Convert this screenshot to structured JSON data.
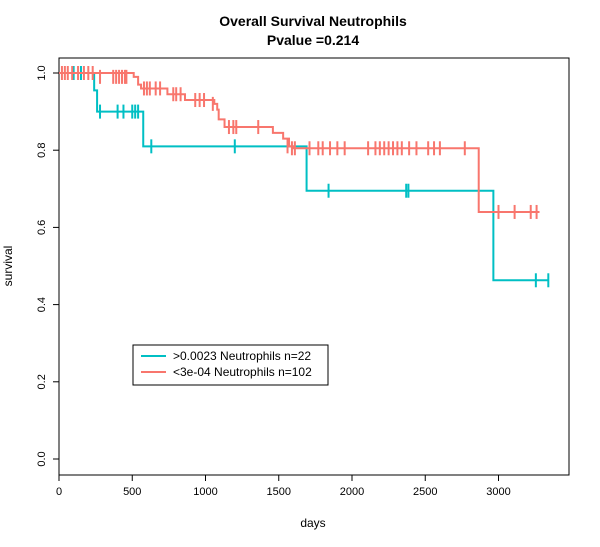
{
  "chart_data": {
    "type": "line",
    "subtype": "kaplan-meier",
    "title": "Overall Survival Neutrophils",
    "subtitle": "Pvalue =0.214",
    "xlabel": "days",
    "ylabel": "survival",
    "xlim": [
      0,
      3350
    ],
    "ylim": [
      0,
      1.0
    ],
    "x_ticks": [
      0,
      500,
      1000,
      1500,
      2000,
      2500,
      3000
    ],
    "y_ticks": [
      0.0,
      0.2,
      0.4,
      0.6,
      0.8,
      1.0
    ],
    "y_tick_labels": [
      "0.0",
      "0.2",
      "0.4",
      "0.6",
      "0.8",
      "1.0"
    ],
    "grid": false,
    "legend_position": "bottom-left",
    "series": [
      {
        "name": ">0.0023 Neutrophils n=22",
        "color": "#00BFC4",
        "steps": [
          [
            0,
            1.0
          ],
          [
            240,
            0.955
          ],
          [
            260,
            0.9
          ],
          [
            575,
            0.81
          ],
          [
            1690,
            0.695
          ],
          [
            2965,
            0.463
          ],
          [
            3340,
            0.463
          ]
        ],
        "censors": [
          [
            100,
            1.0
          ],
          [
            150,
            1.0
          ],
          [
            280,
            0.9
          ],
          [
            400,
            0.9
          ],
          [
            440,
            0.9
          ],
          [
            500,
            0.9
          ],
          [
            520,
            0.9
          ],
          [
            540,
            0.9
          ],
          [
            630,
            0.81
          ],
          [
            1200,
            0.81
          ],
          [
            1840,
            0.695
          ],
          [
            2370,
            0.695
          ],
          [
            2385,
            0.695
          ],
          [
            3255,
            0.463
          ],
          [
            3340,
            0.463
          ]
        ]
      },
      {
        "name": "<3e-04 Neutrophils n=102",
        "color": "#F8766D",
        "steps": [
          [
            0,
            1.0
          ],
          [
            510,
            0.99
          ],
          [
            540,
            0.97
          ],
          [
            560,
            0.96
          ],
          [
            650,
            0.96
          ],
          [
            740,
            0.945
          ],
          [
            860,
            0.93
          ],
          [
            930,
            0.93
          ],
          [
            1060,
            0.92
          ],
          [
            1080,
            0.905
          ],
          [
            1090,
            0.88
          ],
          [
            1130,
            0.86
          ],
          [
            1280,
            0.86
          ],
          [
            1420,
            0.86
          ],
          [
            1460,
            0.845
          ],
          [
            1530,
            0.83
          ],
          [
            1570,
            0.81
          ],
          [
            1600,
            0.805
          ],
          [
            2860,
            0.805
          ],
          [
            2865,
            0.64
          ],
          [
            3280,
            0.64
          ]
        ],
        "censors": [
          [
            20,
            1.0
          ],
          [
            40,
            1.0
          ],
          [
            60,
            1.0
          ],
          [
            90,
            1.0
          ],
          [
            130,
            1.0
          ],
          [
            170,
            1.0
          ],
          [
            200,
            1.0
          ],
          [
            230,
            1.0
          ],
          [
            280,
            0.99
          ],
          [
            370,
            0.99
          ],
          [
            390,
            0.99
          ],
          [
            410,
            0.99
          ],
          [
            430,
            0.99
          ],
          [
            450,
            0.99
          ],
          [
            460,
            0.99
          ],
          [
            580,
            0.96
          ],
          [
            600,
            0.96
          ],
          [
            620,
            0.96
          ],
          [
            660,
            0.96
          ],
          [
            690,
            0.96
          ],
          [
            780,
            0.945
          ],
          [
            800,
            0.945
          ],
          [
            830,
            0.945
          ],
          [
            930,
            0.93
          ],
          [
            960,
            0.93
          ],
          [
            990,
            0.93
          ],
          [
            1050,
            0.92
          ],
          [
            1160,
            0.86
          ],
          [
            1190,
            0.86
          ],
          [
            1210,
            0.86
          ],
          [
            1360,
            0.86
          ],
          [
            1560,
            0.81
          ],
          [
            1590,
            0.805
          ],
          [
            1610,
            0.805
          ],
          [
            1710,
            0.805
          ],
          [
            1770,
            0.805
          ],
          [
            1800,
            0.805
          ],
          [
            1850,
            0.805
          ],
          [
            1900,
            0.805
          ],
          [
            1950,
            0.805
          ],
          [
            2110,
            0.805
          ],
          [
            2160,
            0.805
          ],
          [
            2190,
            0.805
          ],
          [
            2220,
            0.805
          ],
          [
            2250,
            0.805
          ],
          [
            2280,
            0.805
          ],
          [
            2310,
            0.805
          ],
          [
            2340,
            0.805
          ],
          [
            2390,
            0.805
          ],
          [
            2440,
            0.805
          ],
          [
            2520,
            0.805
          ],
          [
            2560,
            0.805
          ],
          [
            2600,
            0.805
          ],
          [
            2770,
            0.805
          ],
          [
            3000,
            0.64
          ],
          [
            3110,
            0.64
          ],
          [
            3220,
            0.64
          ],
          [
            3260,
            0.64
          ]
        ]
      }
    ]
  }
}
